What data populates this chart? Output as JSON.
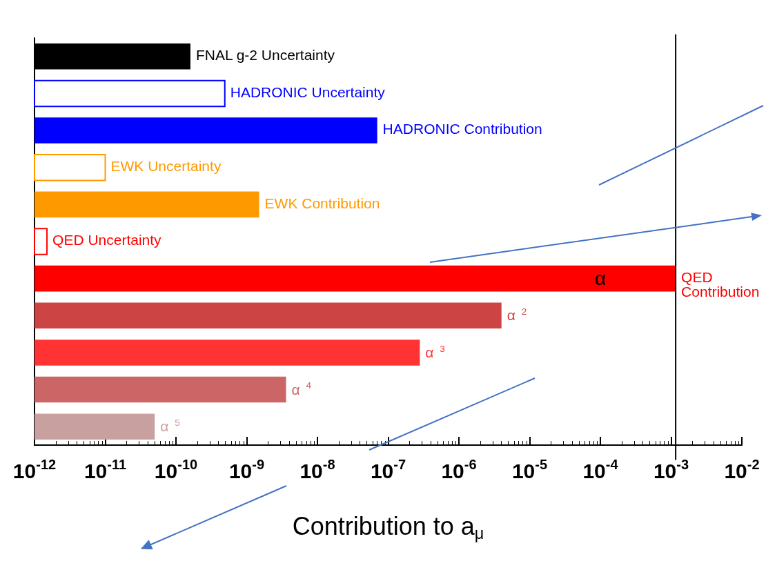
{
  "chart_data": {
    "type": "bar",
    "orientation": "horizontal",
    "log": "x",
    "xlabel": "Contribution to a$_{μ}$",
    "categories": [
      "FNAL g-2 Uncertainty",
      "HADRONIC Uncertainty",
      "HADRONIC Contribution",
      "EWK Uncertainty",
      "EWK Contribution",
      "QED Uncertainty",
      "QED Contribution",
      "α$^{2}$",
      "α$^{3}$",
      "α$^{4}$",
      "α$^{5}$"
    ],
    "series": [
      {
        "values": [
          1.6e-10,
          null,
          7e-08,
          null,
          1.5e-09,
          null,
          0.00116,
          4e-06,
          2.8e-07,
          3.6e-09,
          5e-11
        ],
        "colors": [
          "#000000",
          null,
          "#0000ff",
          null,
          "#ff9900",
          null,
          "#ff0000",
          "#cc4444",
          "#ff3333",
          "#cc6666",
          "#c8a0a0"
        ]
      },
      {
        "values": [
          null,
          4.9e-10,
          null,
          1e-11,
          null,
          1.5e-12,
          null,
          null,
          null,
          null,
          null
        ],
        "colors": [
          null,
          "#0000ff",
          null,
          "#ff9900",
          null,
          "#ff0000",
          null,
          null,
          null,
          null,
          null
        ]
      }
    ],
    "annotations": [
      {
        "text": "α",
        "x": 0.0001,
        "y": "QED Contribution"
      }
    ],
    "ref_lines": [
      {
        "axis": "x",
        "value": 0.00116,
        "color": "#000000"
      }
    ],
    "xlim": [
      1e-12,
      0.01
    ],
    "xticks": [
      {
        "value": 1e-12,
        "label": "10$^{-12}$"
      },
      {
        "value": 1e-11,
        "label": "10$^{-11}$"
      },
      {
        "value": 1e-10,
        "label": "10$^{-10}$"
      },
      {
        "value": 1e-09,
        "label": "10$^{-9}$"
      },
      {
        "value": 1e-08,
        "label": "10$^{-8}$"
      },
      {
        "value": 1e-07,
        "label": "10$^{-7}$"
      },
      {
        "value": 1e-06,
        "label": "10$^{-6}$"
      },
      {
        "value": 1e-05,
        "label": "10$^{-5}$"
      },
      {
        "value": 0.0001,
        "label": "10$^{-4}$"
      },
      {
        "value": 0.001,
        "label": "10$^{-3}$"
      },
      {
        "value": 0.01,
        "label": "10$^{-2}$"
      }
    ],
    "tick_labels": "x",
    "grid": false
  }
}
